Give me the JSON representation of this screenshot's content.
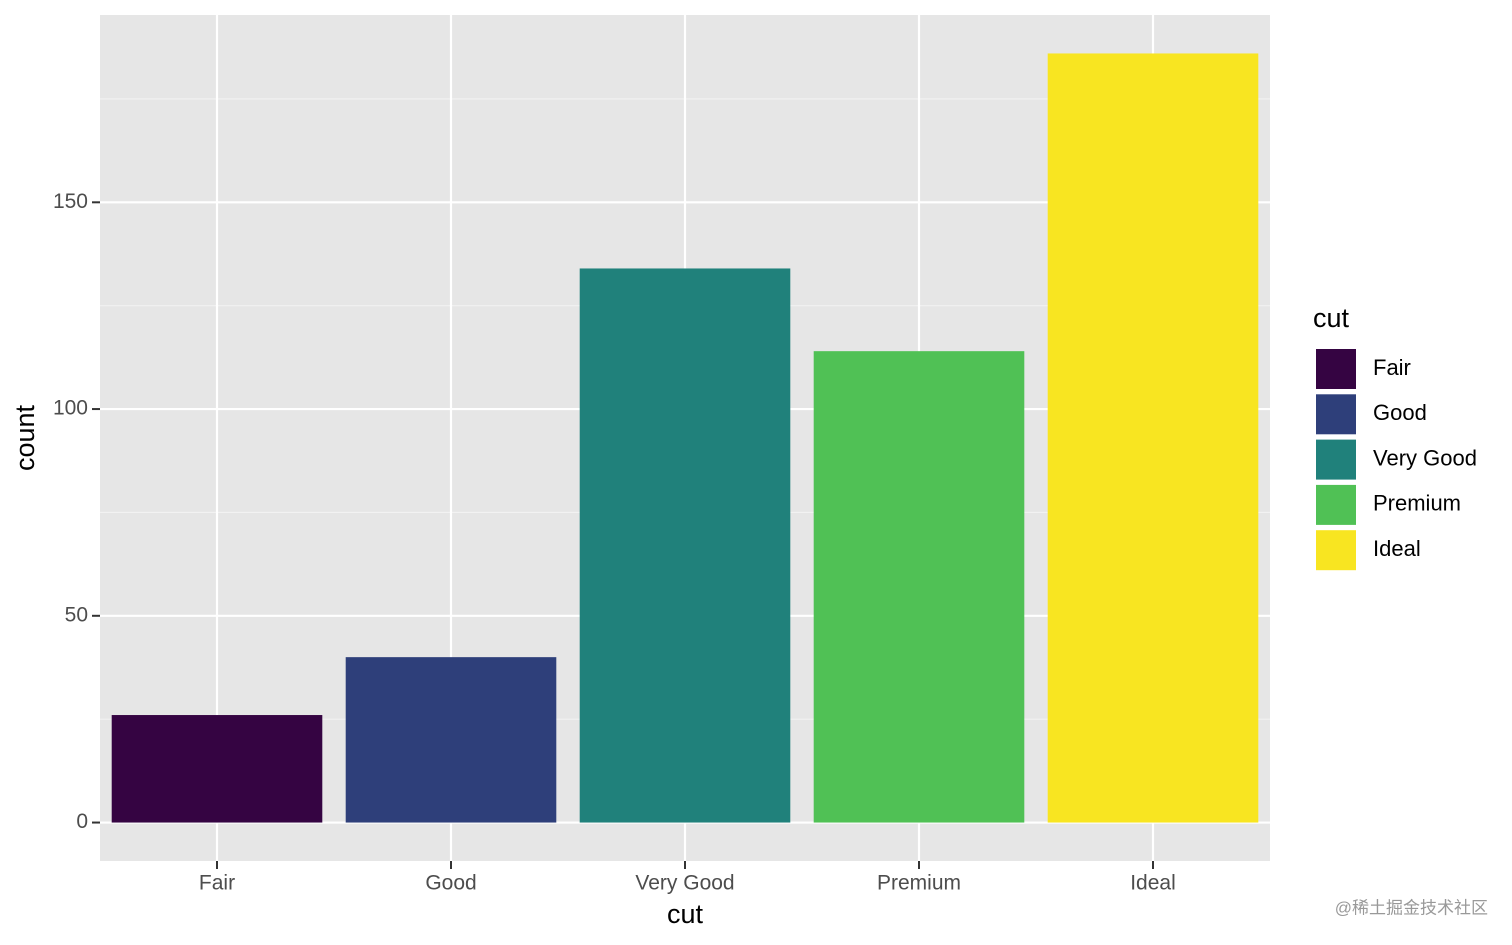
{
  "chart_data": {
    "type": "bar",
    "x_label": "cut",
    "y_label": "count",
    "categories": [
      "Fair",
      "Good",
      "Very Good",
      "Premium",
      "Ideal"
    ],
    "values": [
      26,
      40,
      134,
      114,
      186
    ],
    "colors": [
      "#350442",
      "#2e3f7a",
      "#20817b",
      "#50c155",
      "#f8e521"
    ],
    "ylim": [
      -9.3,
      195.3
    ],
    "yticks": [
      0,
      50,
      100,
      150
    ],
    "minor_yticks": [
      25,
      75,
      125,
      175
    ],
    "grid": true,
    "legend_title": "cut",
    "legend_position": "right",
    "watermark": "@稀土掘金技术社区"
  }
}
